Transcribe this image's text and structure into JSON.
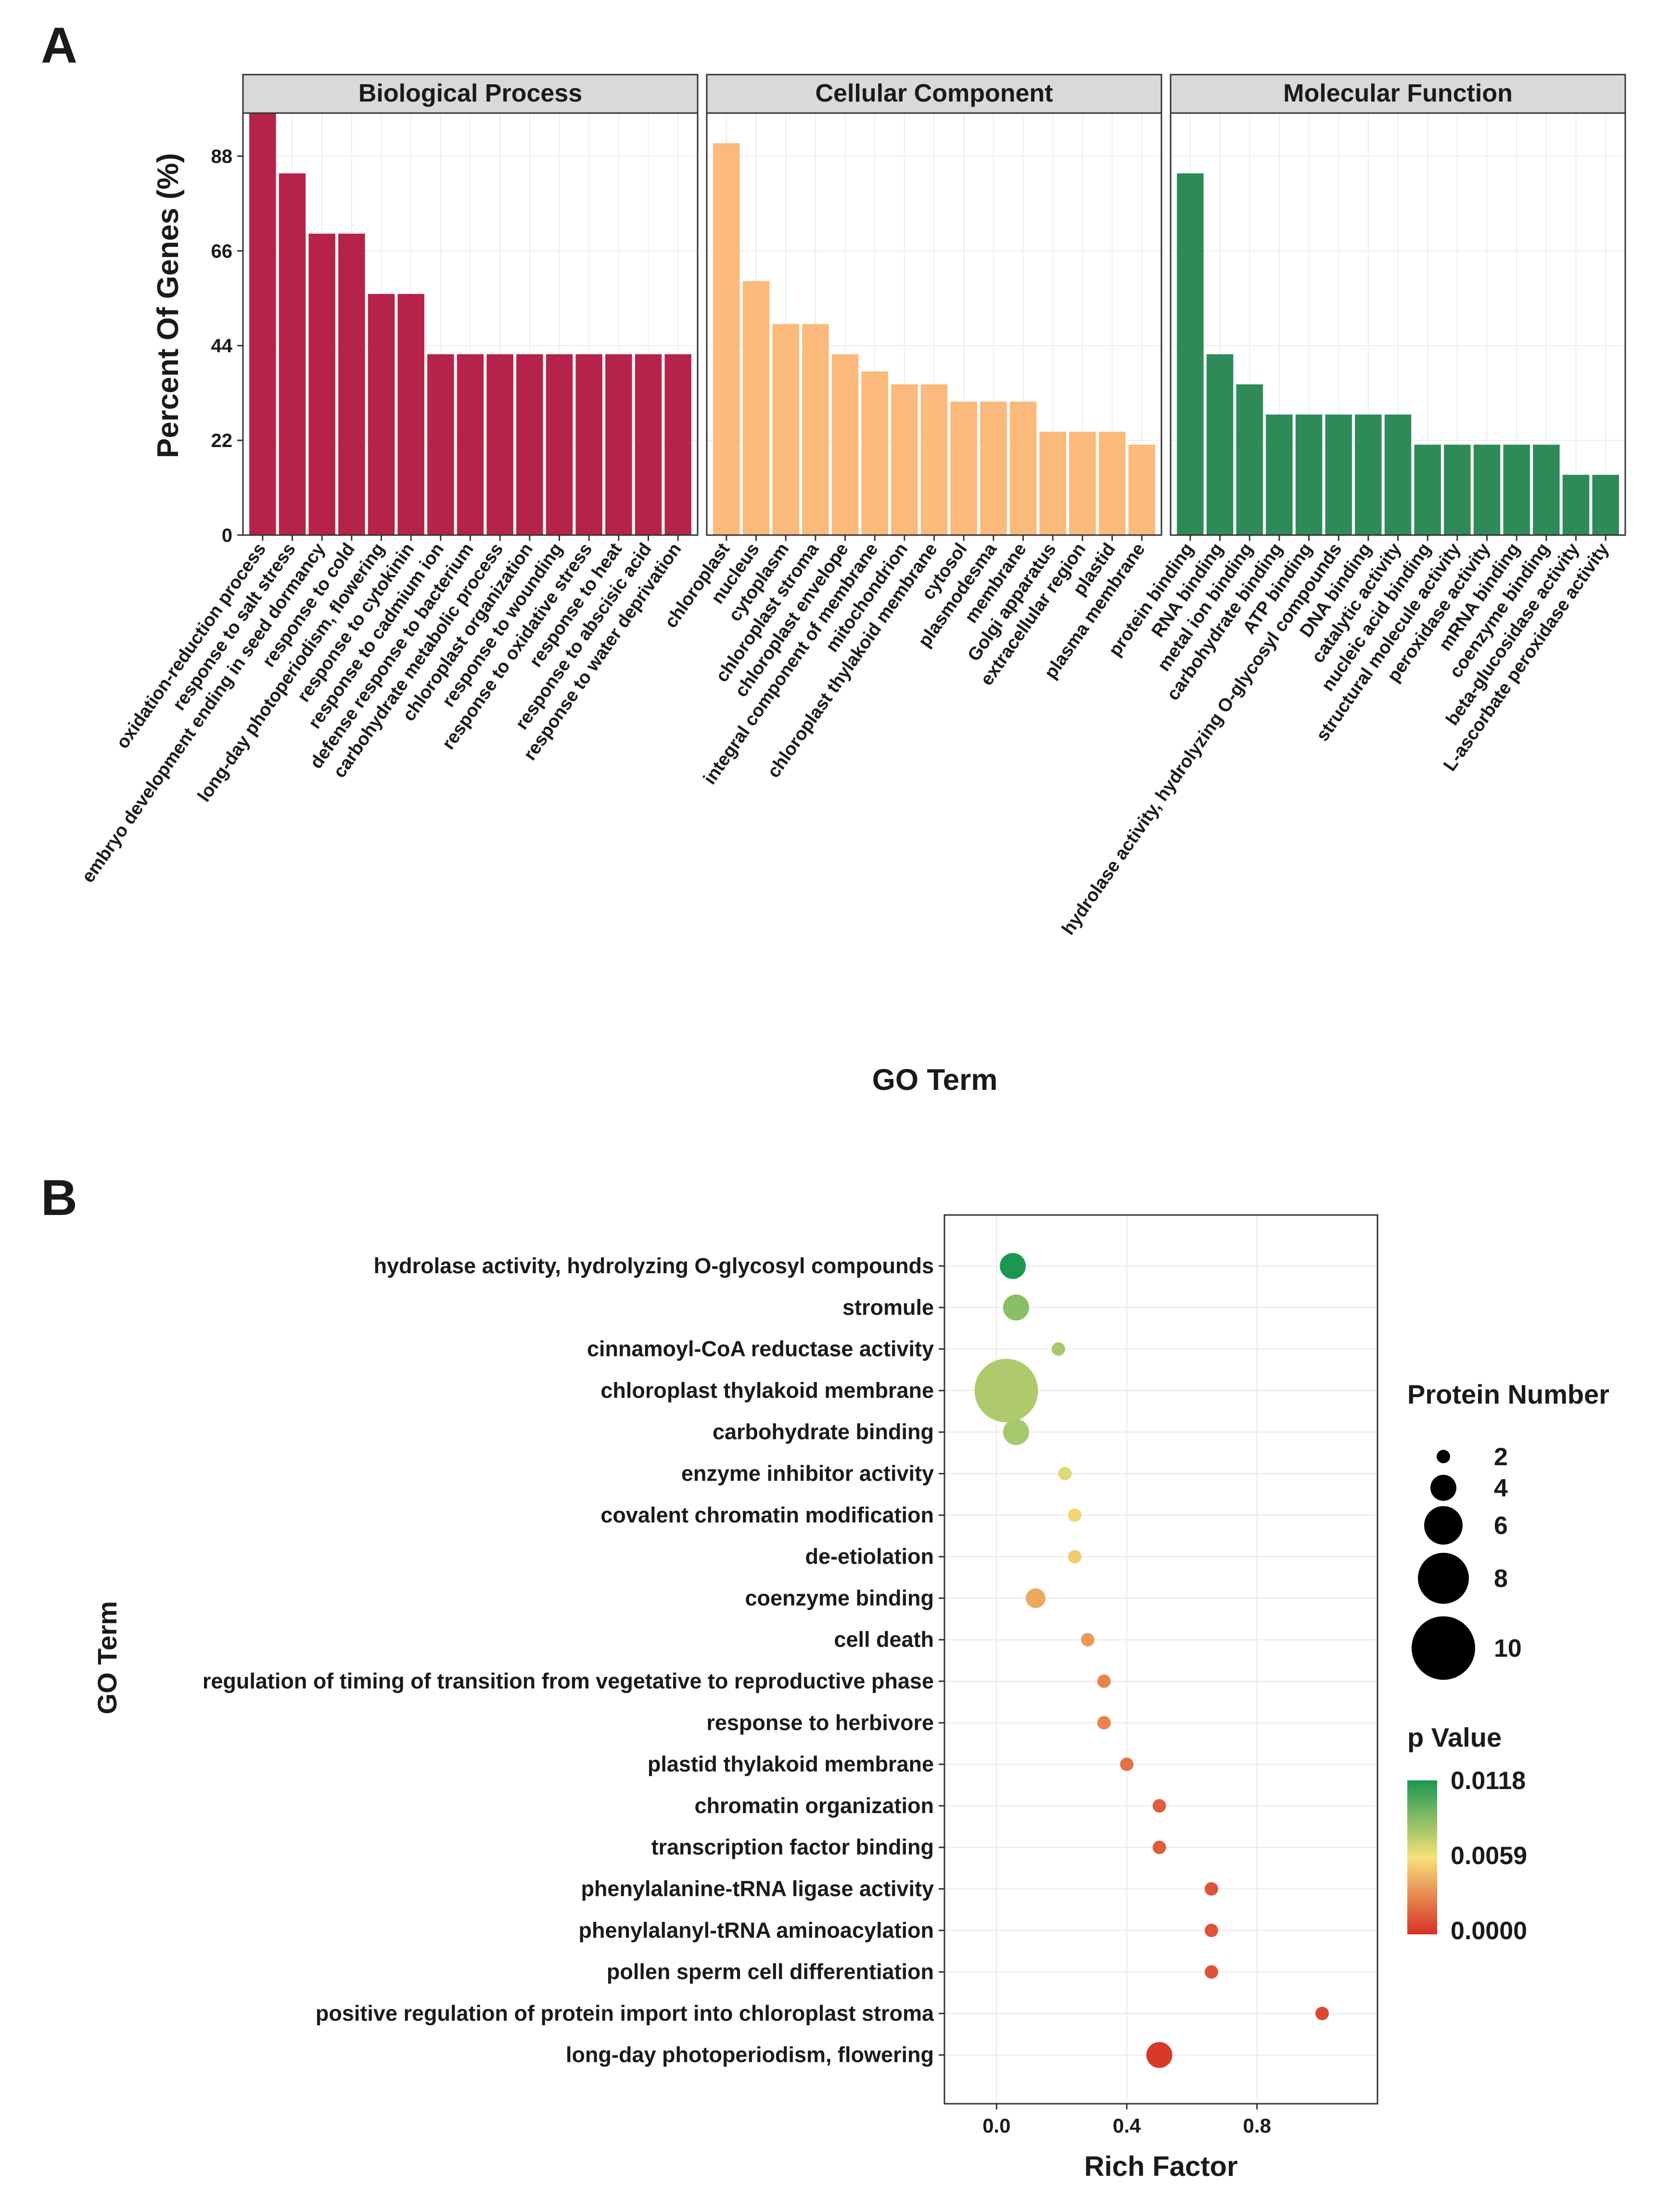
{
  "panel_a": {
    "label": "A",
    "chart_data": {
      "type": "bar",
      "title": "",
      "ylabel": "Percent Of Genes (%)",
      "xlabel": "GO Term",
      "ylim": [
        0,
        98
      ],
      "yticks": [
        "0",
        "22",
        "44",
        "66",
        "88"
      ],
      "facets": [
        {
          "name": "Biological Process",
          "color": "#b5234a",
          "categories": [
            "oxidation-reduction process",
            "response to salt stress",
            "embryo development ending in seed dormancy",
            "response to cold",
            "long-day photoperiodism, flowering",
            "response to cytokinin",
            "response to cadmium ion",
            "defense response to bacterium",
            "carbohydrate metabolic process",
            "chloroplast organization",
            "response to wounding",
            "response to oxidative stress",
            "response to heat",
            "response to abscisic acid",
            "response to water deprivation"
          ],
          "values": [
            98,
            84,
            70,
            70,
            56,
            56,
            42,
            42,
            42,
            42,
            42,
            42,
            42,
            42,
            42
          ]
        },
        {
          "name": "Cellular Component",
          "color": "#fbb97b",
          "categories": [
            "chloroplast",
            "nucleus",
            "cytoplasm",
            "chloroplast stroma",
            "chloroplast envelope",
            "integral component of membrane",
            "mitochondrion",
            "chloroplast thylakoid membrane",
            "cytosol",
            "plasmodesma",
            "membrane",
            "Golgi apparatus",
            "extracellular region",
            "plastid",
            "plasma membrane"
          ],
          "values": [
            91,
            59,
            49,
            49,
            42,
            38,
            35,
            35,
            31,
            31,
            31,
            24,
            24,
            24,
            21
          ]
        },
        {
          "name": "Molecular Function",
          "color": "#2e8b57",
          "categories": [
            "protein binding",
            "RNA binding",
            "metal ion binding",
            "carbohydrate binding",
            "ATP binding",
            "hydrolase activity, hydrolyzing O-glycosyl compounds",
            "DNA binding",
            "catalytic activity",
            "nucleic acid binding",
            "structural molecule activity",
            "peroxidase activity",
            "mRNA binding",
            "coenzyme binding",
            "beta-glucosidase activity",
            "L-ascorbate peroxidase activity"
          ],
          "values": [
            84,
            42,
            35,
            28,
            28,
            28,
            28,
            28,
            21,
            21,
            21,
            21,
            21,
            14,
            14
          ]
        }
      ]
    }
  },
  "panel_b": {
    "label": "B",
    "chart_data": {
      "type": "scatter",
      "title": "",
      "xlabel": "Rich Factor",
      "ylabel": "GO Term",
      "xlim": [
        -0.16,
        1.17
      ],
      "xticks": [
        "0.0",
        "0.4",
        "0.8"
      ],
      "terms": [
        "hydrolase activity, hydrolyzing O-glycosyl compounds",
        "stromule",
        "cinnamoyl-CoA reductase activity",
        "chloroplast thylakoid membrane",
        "carbohydrate binding",
        "enzyme inhibitor activity",
        "covalent chromatin modification",
        "de-etiolation",
        "coenzyme binding",
        "cell death",
        "regulation of timing of transition from vegetative to reproductive phase",
        "response to herbivore",
        "plastid thylakoid membrane",
        "chromatin organization",
        "transcription factor binding",
        "phenylalanine-tRNA ligase activity",
        "phenylalanyl-tRNA aminoacylation",
        "pollen sperm cell differentiation",
        "positive regulation of protein import into chloroplast stroma",
        "long-day photoperiodism, flowering"
      ],
      "rich_factor": [
        0.05,
        0.06,
        0.19,
        0.03,
        0.06,
        0.21,
        0.24,
        0.24,
        0.12,
        0.28,
        0.33,
        0.33,
        0.4,
        0.5,
        0.5,
        0.66,
        0.66,
        0.66,
        1.0,
        0.5
      ],
      "protein_number": [
        4,
        4,
        2,
        10,
        4,
        2,
        2,
        2,
        3,
        2,
        2,
        2,
        2,
        2,
        2,
        2,
        2,
        2,
        2,
        4
      ],
      "p_value": [
        0.0118,
        0.0088,
        0.008,
        0.0078,
        0.008,
        0.0065,
        0.0055,
        0.0052,
        0.004,
        0.0035,
        0.0028,
        0.0028,
        0.0022,
        0.0015,
        0.0015,
        0.0012,
        0.0012,
        0.0012,
        0.0008,
        0.0003
      ],
      "size_legend": {
        "title": "Protein Number",
        "values": [
          2,
          4,
          6,
          8,
          10
        ],
        "labels": [
          "2",
          "4",
          "6",
          "8",
          "10"
        ]
      },
      "color_legend": {
        "title": "p Value",
        "labels": [
          "0.0118",
          "0.0059",
          "0.0000"
        ],
        "colors": [
          "#1a9850",
          "#f5e27a",
          "#d73027"
        ]
      }
    }
  }
}
